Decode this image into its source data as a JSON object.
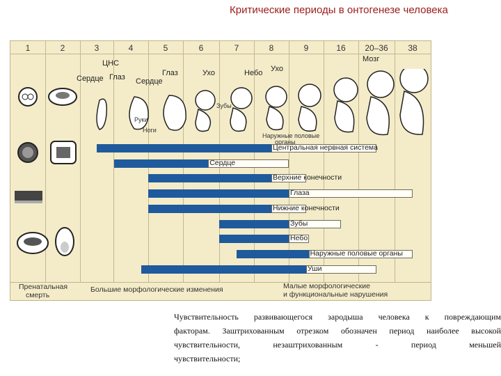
{
  "title": "Критические периоды в онтогенезе человека",
  "weeks": [
    "1",
    "2",
    "3",
    "4",
    "5",
    "6",
    "7",
    "8",
    "9",
    "16",
    "20–36",
    "38"
  ],
  "embryo_labels": {
    "cns": "ЦНС",
    "heart1": "Сердце",
    "eye1": "Глаз",
    "heart2": "Сердце",
    "eye2": "Глаз",
    "ear1": "Ухо",
    "palate": "Небо",
    "ear2": "Ухо",
    "brain": "Мозг",
    "hands": "Руки",
    "legs": "Ноги",
    "teeth": "Зубы",
    "genitals_line1": "Наружные половые",
    "genitals_line2": "органы"
  },
  "organs": [
    {
      "label": "Центральная нервная система",
      "solid": [
        3,
        8
      ],
      "open": [
        8,
        20
      ]
    },
    {
      "label": "Сердце",
      "solid": [
        3.5,
        6.2
      ],
      "open": [
        6.2,
        8.5
      ]
    },
    {
      "label": "Верхние конечности",
      "solid": [
        4.5,
        8
      ],
      "open": [
        8,
        9
      ]
    },
    {
      "label": "Глаза",
      "solid": [
        4.5,
        8.5
      ],
      "open": [
        8.5,
        38
      ]
    },
    {
      "label": "Нижние конечности",
      "solid": [
        4.5,
        8
      ],
      "open": [
        8,
        9
      ]
    },
    {
      "label": "Зубы",
      "solid": [
        6.5,
        8.5
      ],
      "open": [
        8.5,
        16
      ]
    },
    {
      "label": "Небо",
      "solid": [
        6.5,
        8.5
      ],
      "open": [
        8.5,
        9.5
      ]
    },
    {
      "label": "Наружные половые органы",
      "solid": [
        7,
        9.5
      ],
      "open": [
        9.5,
        38
      ]
    },
    {
      "label": "Уши",
      "solid": [
        4.3,
        9
      ],
      "open": [
        9,
        20
      ]
    }
  ],
  "footer": {
    "left_line1": "Пренатальная",
    "left_line2": "смерть",
    "middle": "Большие морфологические изменения",
    "right_line1": "Малые морфологические",
    "right_line2": "и функциональные нарушения"
  },
  "caption": {
    "line1": "Чувствительность развивающегося зародыша человека к повреждающим",
    "line2": "факторам. Заштрихованным отрезком обозначен период наиболее высокой",
    "line3": "чувствительности, незаштрихованным - период меньшей",
    "line4": "чувствительности;"
  },
  "colors": {
    "bar_solid": "#1f5a9c",
    "bar_open": "#fffef7",
    "figure_bg": "#f4ecc9",
    "title": "#9b1c1c"
  }
}
